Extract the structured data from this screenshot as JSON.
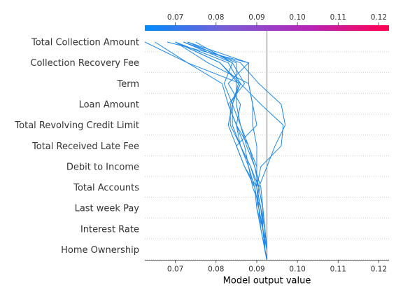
{
  "chart_data": {
    "type": "decision_plot",
    "xlabel": "Model output value",
    "xlim": [
      0.0625,
      0.1225
    ],
    "base_value": 0.0925,
    "x_ticks": [
      0.07,
      0.08,
      0.09,
      0.1,
      0.11,
      0.12
    ],
    "x_tick_labels": [
      "0.07",
      "0.08",
      "0.09",
      "0.10",
      "0.11",
      "0.12"
    ],
    "features": [
      "Total Collection Amount",
      "Collection Recovery Fee",
      "Term",
      "Loan Amount",
      "Total Revolving Credit Limit",
      "Total Received Late Fee",
      "Debit to Income",
      "Total Accounts",
      "Last week Pay",
      "Interest Rate",
      "Home Ownership"
    ],
    "colorbar": {
      "colors": [
        "#008bfb",
        "#7a5cd6",
        "#b526b6",
        "#ff0052"
      ]
    },
    "line_color": "#1e88e5",
    "series": [
      {
        "values": [
          0.0925,
          0.092,
          0.0915,
          0.091,
          0.09,
          0.0885,
          0.086,
          0.085,
          0.083,
          0.0815,
          0.073,
          0.0625
        ]
      },
      {
        "values": [
          0.0925,
          0.0925,
          0.092,
          0.0915,
          0.0905,
          0.0895,
          0.088,
          0.086,
          0.084,
          0.086,
          0.073,
          0.065
        ]
      },
      {
        "values": [
          0.0925,
          0.092,
          0.091,
          0.09,
          0.0895,
          0.087,
          0.085,
          0.09,
          0.089,
          0.088,
          0.078,
          0.07
        ]
      },
      {
        "values": [
          0.0925,
          0.0925,
          0.0915,
          0.0905,
          0.0895,
          0.088,
          0.086,
          0.084,
          0.084,
          0.0855,
          0.081,
          0.07
        ]
      },
      {
        "values": [
          0.0925,
          0.092,
          0.0915,
          0.0915,
          0.091,
          0.0895,
          0.0875,
          0.086,
          0.085,
          0.085,
          0.085,
          0.073
        ]
      },
      {
        "values": [
          0.0925,
          0.092,
          0.091,
          0.0905,
          0.09,
          0.09,
          0.088,
          0.085,
          0.086,
          0.083,
          0.088,
          0.073
        ]
      },
      {
        "values": [
          0.0925,
          0.092,
          0.0915,
          0.0905,
          0.09,
          0.087,
          0.085,
          0.083,
          0.084,
          0.082,
          0.084,
          0.075
        ]
      },
      {
        "values": [
          0.0925,
          0.0925,
          0.092,
          0.091,
          0.09,
          0.09,
          0.09,
          0.089,
          0.089,
          0.088,
          0.088,
          0.068
        ]
      },
      {
        "values": [
          0.0925,
          0.092,
          0.092,
          0.091,
          0.089,
          0.088,
          0.087,
          0.085,
          0.083,
          0.087,
          0.084,
          0.072
        ]
      },
      {
        "values": [
          0.0925,
          0.0925,
          0.092,
          0.0915,
          0.0905,
          0.0885,
          0.086,
          0.0835,
          0.0835,
          0.086,
          0.083,
          0.07
        ]
      },
      {
        "values": [
          0.0925,
          0.092,
          0.0915,
          0.091,
          0.09,
          0.091,
          0.096,
          0.0965,
          0.091,
          0.086,
          0.081,
          0.07
        ]
      },
      {
        "values": [
          0.0925,
          0.0925,
          0.0915,
          0.09,
          0.0905,
          0.0925,
          0.0945,
          0.097,
          0.096,
          0.0905,
          0.086,
          0.072
        ]
      }
    ]
  }
}
